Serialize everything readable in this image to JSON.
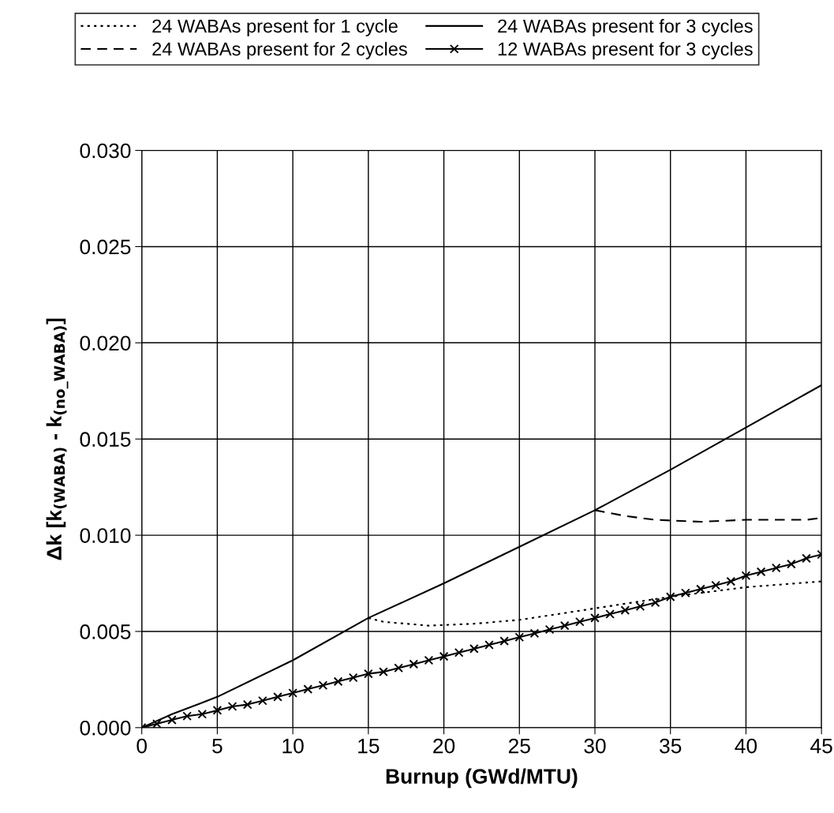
{
  "chart_data": {
    "type": "line",
    "xlabel": "Burnup (GWd/MTU)",
    "ylabel": "Δk [k$_{(WABA)}$ - k$_{(no_WABA)}$]",
    "xlim": [
      0,
      45
    ],
    "xticks": [
      0,
      5,
      10,
      15,
      20,
      25,
      30,
      35,
      40,
      45
    ],
    "ylim": [
      0,
      0.03
    ],
    "yticks": [
      {
        "value": 0,
        "label": "0.000"
      },
      {
        "value": 0.005,
        "label": "0.005"
      },
      {
        "value": 0.01,
        "label": "0.010"
      },
      {
        "value": 0.015,
        "label": "0.015"
      },
      {
        "value": 0.02,
        "label": "0.020"
      },
      {
        "value": 0.025,
        "label": "0.025"
      },
      {
        "value": 0.03,
        "label": "0.030"
      }
    ],
    "grid": true,
    "legend": "top",
    "series": [
      {
        "name": "24 WABAs present for 1 cycle",
        "color": "#000000",
        "line_style": "dotted",
        "marker": "none",
        "x": [
          15,
          16,
          19,
          22,
          25,
          30,
          35,
          40,
          45
        ],
        "values": [
          0.0057,
          0.0055,
          0.0053,
          0.0054,
          0.0056,
          0.0062,
          0.0068,
          0.0073,
          0.0076
        ]
      },
      {
        "name": "24 WABAs present for 2 cycles",
        "color": "#000000",
        "line_style": "dashed",
        "marker": "none",
        "x": [
          30,
          32,
          34,
          37,
          40,
          44,
          45
        ],
        "values": [
          0.0113,
          0.011,
          0.0108,
          0.0107,
          0.0108,
          0.0108,
          0.0109
        ]
      },
      {
        "name": "24 WABAs present for 3 cycles",
        "color": "#000000",
        "line_style": "solid",
        "marker": "none",
        "x": [
          0,
          2,
          5,
          10,
          15,
          20,
          25,
          30,
          35,
          40,
          45
        ],
        "values": [
          0,
          0.0007,
          0.0016,
          0.0035,
          0.0057,
          0.0075,
          0.0094,
          0.0113,
          0.0134,
          0.0156,
          0.0178
        ]
      },
      {
        "name": "12 WABAs present for 3 cycles",
        "color": "#000000",
        "line_style": "solid",
        "marker": "cross",
        "x": [
          0,
          1,
          2,
          3,
          4,
          5,
          6,
          7,
          8,
          9,
          10,
          11,
          12,
          13,
          14,
          15,
          16,
          17,
          18,
          19,
          20,
          21,
          22,
          23,
          24,
          25,
          26,
          27,
          28,
          29,
          30,
          31,
          32,
          33,
          34,
          35,
          36,
          37,
          38,
          39,
          40,
          41,
          42,
          43,
          44,
          45
        ],
        "values": [
          0,
          0.0002,
          0.0004,
          0.0006,
          0.0007,
          0.0009,
          0.0011,
          0.0012,
          0.0014,
          0.0016,
          0.0018,
          0.002,
          0.0022,
          0.0024,
          0.0026,
          0.0028,
          0.0029,
          0.0031,
          0.0033,
          0.0035,
          0.0037,
          0.0039,
          0.0041,
          0.0043,
          0.0045,
          0.0047,
          0.0049,
          0.0051,
          0.0053,
          0.0055,
          0.0057,
          0.0059,
          0.0061,
          0.0063,
          0.0065,
          0.0068,
          0.007,
          0.0072,
          0.0074,
          0.0076,
          0.0079,
          0.0081,
          0.0083,
          0.0085,
          0.0088,
          0.009
        ]
      }
    ]
  }
}
